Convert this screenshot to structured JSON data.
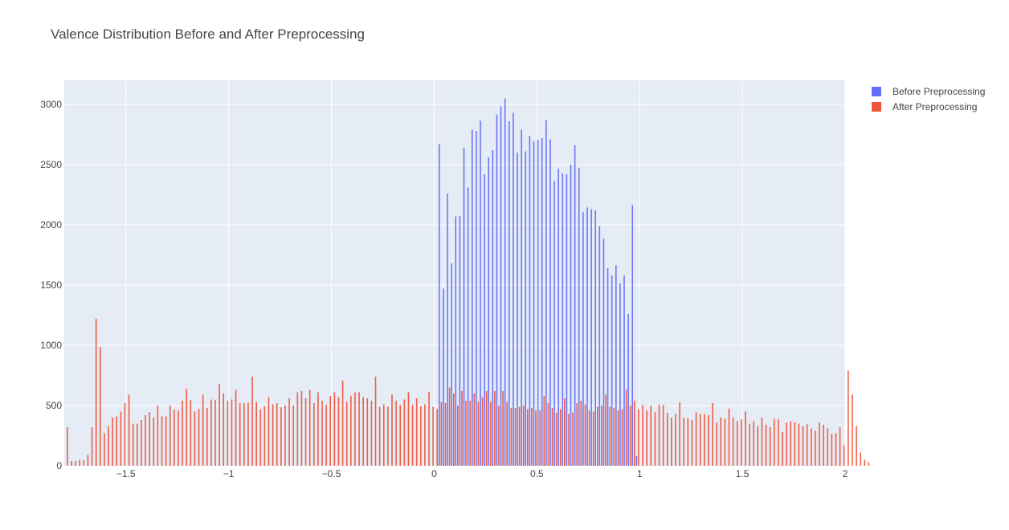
{
  "chart_data": {
    "type": "bar",
    "subtype": "histogram-overlay",
    "title": "Valence Distribution Before and After Preprocessing",
    "xlabel": "",
    "ylabel": "",
    "xlim": [
      -1.8,
      2.0
    ],
    "ylim": [
      0,
      3200
    ],
    "x_ticks": [
      -1.5,
      -1,
      -0.5,
      0,
      0.5,
      1,
      1.5,
      2
    ],
    "x_tick_labels": [
      "−1.5",
      "−1",
      "−0.5",
      "0",
      "0.5",
      "1",
      "1.5",
      "2"
    ],
    "y_ticks": [
      0,
      500,
      1000,
      1500,
      2000,
      2500,
      3000
    ],
    "y_tick_labels": [
      "0",
      "500",
      "1000",
      "1500",
      "2000",
      "2500",
      "3000"
    ],
    "grid": true,
    "legend_position": "top-right",
    "background_color": "#e5ecf6",
    "series": [
      {
        "name": "Before Preprocessing",
        "color": "#636efa",
        "bin_start": 0.02,
        "bin_width": 0.02,
        "values": [
          2670,
          1470,
          2260,
          1680,
          2070,
          2075,
          2640,
          2310,
          2790,
          2780,
          2865,
          2420,
          2560,
          2620,
          2915,
          2985,
          3050,
          2860,
          2930,
          2600,
          2790,
          2610,
          2740,
          2695,
          2705,
          2720,
          2870,
          2710,
          2365,
          2465,
          2430,
          2420,
          2500,
          2660,
          2475,
          2105,
          2145,
          2130,
          2120,
          1990,
          1885,
          1640,
          1580,
          1665,
          1515,
          1580,
          1260,
          2165,
          80
        ]
      },
      {
        "name": "After Preprocessing",
        "color": "#ef553b",
        "bin_start": -1.8,
        "bin_width": 0.02,
        "values": [
          320,
          40,
          40,
          50,
          45,
          90,
          320,
          1220,
          985,
          270,
          330,
          400,
          410,
          450,
          520,
          590,
          350,
          350,
          380,
          420,
          445,
          400,
          500,
          410,
          410,
          500,
          465,
          460,
          540,
          640,
          545,
          450,
          470,
          590,
          480,
          550,
          545,
          680,
          600,
          540,
          550,
          630,
          520,
          520,
          525,
          740,
          530,
          465,
          495,
          570,
          510,
          520,
          485,
          500,
          560,
          500,
          610,
          620,
          560,
          630,
          520,
          610,
          540,
          505,
          580,
          610,
          570,
          705,
          530,
          580,
          610,
          610,
          570,
          560,
          540,
          740,
          490,
          510,
          490,
          590,
          540,
          505,
          550,
          610,
          505,
          560,
          495,
          510,
          615,
          490,
          470,
          530,
          520,
          650,
          600,
          500,
          620,
          540,
          540,
          600,
          530,
          570,
          620,
          530,
          620,
          500,
          620,
          530,
          480,
          480,
          490,
          500,
          470,
          480,
          460,
          460,
          580,
          520,
          480,
          440,
          470,
          560,
          430,
          440,
          520,
          540,
          510,
          460,
          450,
          490,
          500,
          590,
          490,
          480,
          460,
          470,
          630,
          500,
          540,
          470,
          505,
          460,
          500,
          445,
          510,
          505,
          440,
          400,
          430,
          525,
          400,
          395,
          380,
          445,
          430,
          430,
          420,
          520,
          360,
          400,
          390,
          475,
          400,
          370,
          385,
          450,
          350,
          370,
          330,
          400,
          340,
          320,
          390,
          385,
          280,
          360,
          370,
          360,
          350,
          330,
          345,
          310,
          290,
          360,
          340,
          310,
          265,
          270,
          320,
          170,
          790,
          590,
          330,
          110,
          50,
          30
        ]
      }
    ]
  }
}
